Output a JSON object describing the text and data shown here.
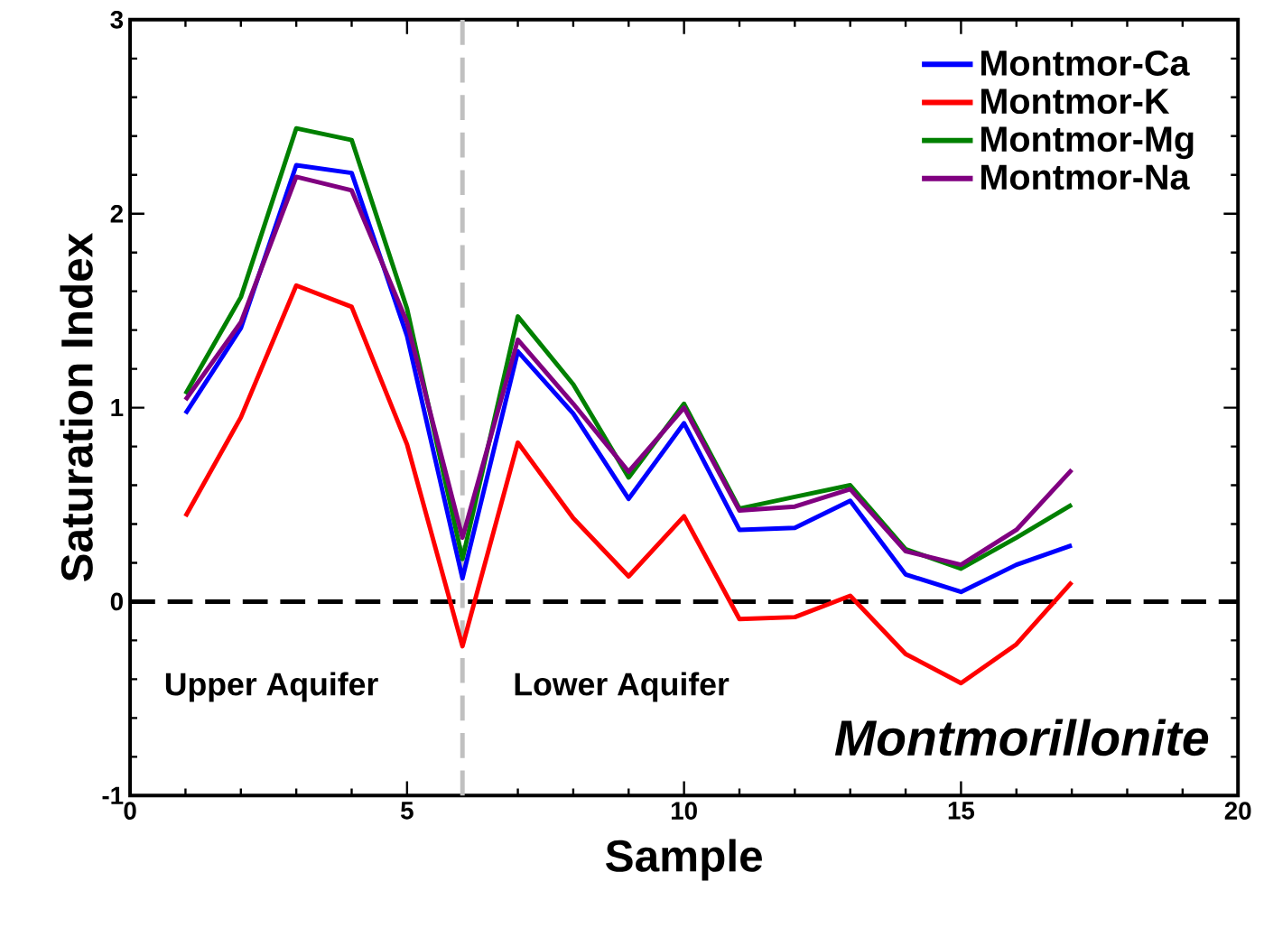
{
  "chart_data": {
    "type": "line",
    "xlabel": "Sample",
    "ylabel": "Saturation Index",
    "x": [
      1,
      2,
      3,
      4,
      5,
      6,
      7,
      8,
      9,
      10,
      11,
      12,
      13,
      14,
      15,
      16,
      17
    ],
    "series": [
      {
        "name": "Montmor-Ca",
        "color": "#0000ff",
        "values": [
          0.97,
          1.41,
          2.25,
          2.21,
          1.37,
          0.12,
          1.29,
          0.97,
          0.53,
          0.92,
          0.37,
          0.38,
          0.52,
          0.14,
          0.05,
          0.19,
          0.29
        ]
      },
      {
        "name": "Montmor-K",
        "color": "#ff0000",
        "values": [
          0.44,
          0.95,
          1.63,
          1.52,
          0.81,
          -0.23,
          0.82,
          0.43,
          0.13,
          0.44,
          -0.09,
          -0.08,
          0.03,
          -0.27,
          -0.42,
          -0.22,
          0.1
        ]
      },
      {
        "name": "Montmor-Mg",
        "color": "#008000",
        "values": [
          1.07,
          1.57,
          2.44,
          2.38,
          1.51,
          0.22,
          1.47,
          1.12,
          0.64,
          1.02,
          0.48,
          0.54,
          0.6,
          0.27,
          0.17,
          0.33,
          0.5
        ]
      },
      {
        "name": "Montmor-Na",
        "color": "#800080",
        "values": [
          1.04,
          1.44,
          2.19,
          2.12,
          1.44,
          0.33,
          1.35,
          1.02,
          0.67,
          1.0,
          0.47,
          0.49,
          0.58,
          0.26,
          0.19,
          0.37,
          0.68
        ]
      }
    ],
    "xlim": [
      0,
      20
    ],
    "xticks": [
      0,
      5,
      10,
      15,
      20
    ],
    "ylim": [
      -1,
      3
    ],
    "yticks": [
      -1,
      0,
      1,
      2,
      3
    ],
    "ref_lines": [
      {
        "axis": "y",
        "value": 0,
        "color": "#000000",
        "line_style": "dashed"
      },
      {
        "axis": "x",
        "value": 6,
        "color": "#c0c0c0",
        "line_style": "dashed"
      }
    ],
    "annotations": [
      "Upper Aquifer",
      "Lower Aquifer",
      "*Montmorillonite*"
    ],
    "legend": "top right",
    "grid": false,
    "marker": "none",
    "line_style": "solid"
  }
}
